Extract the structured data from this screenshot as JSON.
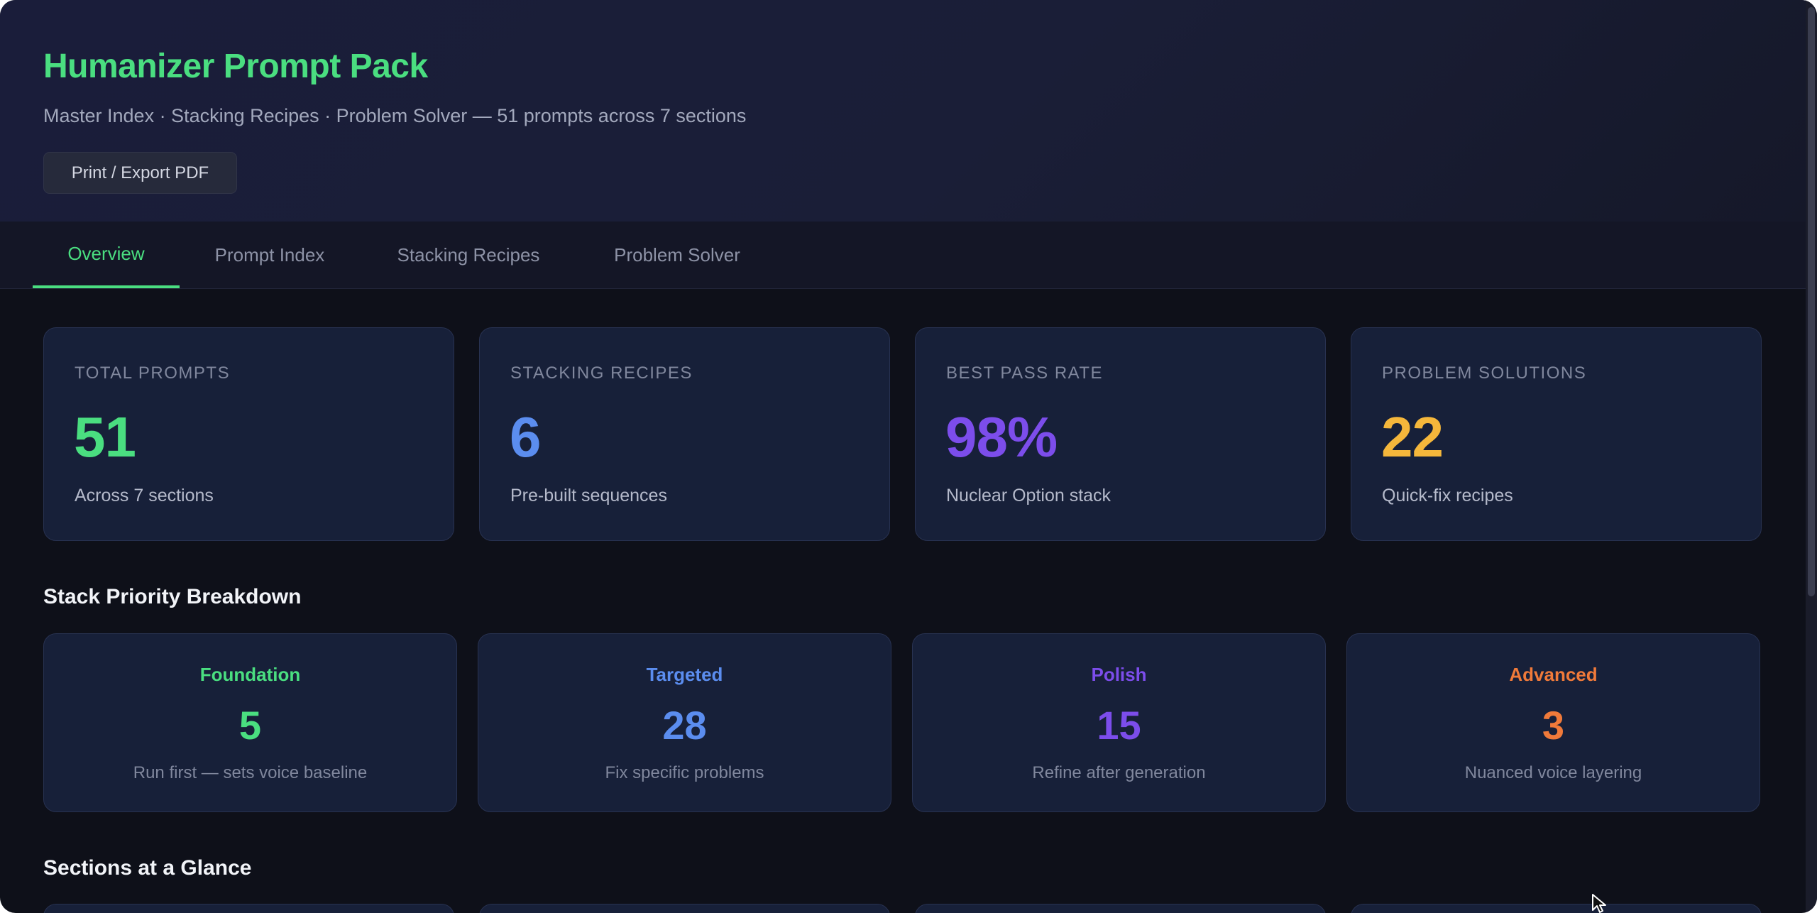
{
  "header": {
    "title": "Humanizer Prompt Pack",
    "subtitle": "Master Index · Stacking Recipes · Problem Solver — 51 prompts across 7 sections",
    "print_label": "Print / Export PDF"
  },
  "tabs": [
    {
      "label": "Overview",
      "active": true
    },
    {
      "label": "Prompt Index",
      "active": false
    },
    {
      "label": "Stacking Recipes",
      "active": false
    },
    {
      "label": "Problem Solver",
      "active": false
    }
  ],
  "stats": [
    {
      "label": "TOTAL PROMPTS",
      "value": "51",
      "desc": "Across 7 sections",
      "color": "#4ade80"
    },
    {
      "label": "STACKING RECIPES",
      "value": "6",
      "desc": "Pre-built sequences",
      "color": "#5b8def"
    },
    {
      "label": "BEST PASS RATE",
      "value": "98%",
      "desc": "Nuclear Option stack",
      "color": "#7c4deb"
    },
    {
      "label": "PROBLEM SOLUTIONS",
      "value": "22",
      "desc": "Quick-fix recipes",
      "color": "#f5b73b"
    }
  ],
  "breakdown": {
    "title": "Stack Priority Breakdown",
    "items": [
      {
        "name": "Foundation",
        "count": "5",
        "desc": "Run first — sets voice baseline",
        "color": "#4ade80"
      },
      {
        "name": "Targeted",
        "count": "28",
        "desc": "Fix specific problems",
        "color": "#5b8def"
      },
      {
        "name": "Polish",
        "count": "15",
        "desc": "Refine after generation",
        "color": "#7c4deb"
      },
      {
        "name": "Advanced",
        "count": "3",
        "desc": "Nuanced voice layering",
        "color": "#f07a3a"
      }
    ]
  },
  "sections": {
    "title": "Sections at a Glance"
  },
  "icons": {
    "cursor": "arrow-cursor-icon"
  }
}
